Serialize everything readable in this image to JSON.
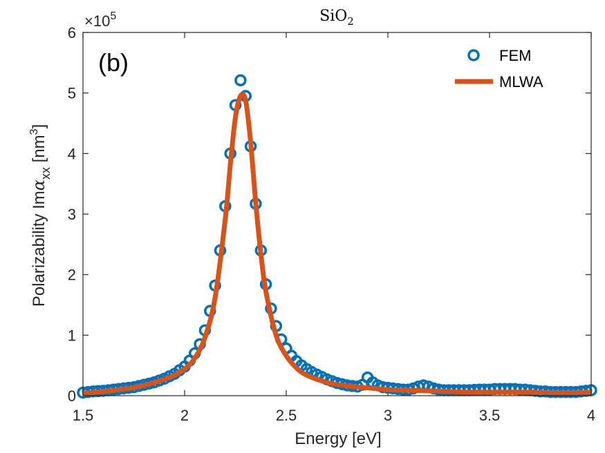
{
  "chart_data": {
    "type": "line",
    "title": "SiO",
    "title_subscript": "2",
    "panel_label": "(b)",
    "xlabel": "Energy [eV]",
    "ylabel_prefix": "Polarizability Im",
    "ylabel_greek": "α",
    "ylabel_sub": "xx",
    "ylabel_unit": " [nm",
    "ylabel_sup": "3",
    "ylabel_close": "]",
    "xlim": [
      1.5,
      4
    ],
    "ylim": [
      0,
      6
    ],
    "y_scale_base": "×10",
    "y_scale_exponent": "5",
    "xticks": [
      1.5,
      2,
      2.5,
      3,
      3.5,
      4
    ],
    "xtick_labels": [
      "1.5",
      "2",
      "2.5",
      "3",
      "3.5",
      "4"
    ],
    "yticks": [
      0,
      1,
      2,
      3,
      4,
      5,
      6
    ],
    "ytick_labels": [
      "0",
      "1",
      "2",
      "3",
      "4",
      "5",
      "6"
    ],
    "legend": {
      "position": "top-right",
      "entries": [
        "FEM",
        "MLWA"
      ]
    },
    "colors": {
      "fem": "#0072BD",
      "mlwa": "#D95319",
      "axis": "#262626"
    },
    "series": [
      {
        "name": "FEM",
        "style": "markers",
        "x": [
          1.5,
          1.525,
          1.55,
          1.575,
          1.6,
          1.625,
          1.65,
          1.675,
          1.7,
          1.725,
          1.75,
          1.775,
          1.8,
          1.825,
          1.85,
          1.875,
          1.9,
          1.925,
          1.95,
          1.975,
          2.0,
          2.025,
          2.05,
          2.075,
          2.1,
          2.125,
          2.15,
          2.175,
          2.2,
          2.225,
          2.25,
          2.275,
          2.3,
          2.325,
          2.35,
          2.375,
          2.4,
          2.425,
          2.45,
          2.475,
          2.5,
          2.525,
          2.55,
          2.575,
          2.6,
          2.625,
          2.65,
          2.675,
          2.7,
          2.725,
          2.75,
          2.775,
          2.8,
          2.825,
          2.85,
          2.875,
          2.9,
          2.925,
          2.95,
          2.975,
          3.0,
          3.025,
          3.05,
          3.075,
          3.1,
          3.125,
          3.15,
          3.175,
          3.2,
          3.225,
          3.25,
          3.275,
          3.3,
          3.325,
          3.35,
          3.375,
          3.4,
          3.425,
          3.45,
          3.475,
          3.5,
          3.525,
          3.55,
          3.575,
          3.6,
          3.625,
          3.65,
          3.675,
          3.7,
          3.725,
          3.75,
          3.775,
          3.8,
          3.825,
          3.85,
          3.875,
          3.9,
          3.925,
          3.95,
          3.975,
          4.0
        ],
        "values": [
          0.05,
          0.06,
          0.07,
          0.075,
          0.08,
          0.09,
          0.1,
          0.11,
          0.12,
          0.13,
          0.14,
          0.16,
          0.18,
          0.2,
          0.22,
          0.25,
          0.28,
          0.32,
          0.36,
          0.42,
          0.48,
          0.58,
          0.7,
          0.85,
          1.08,
          1.4,
          1.82,
          2.4,
          3.13,
          4.0,
          4.8,
          5.21,
          4.95,
          4.12,
          3.17,
          2.4,
          1.84,
          1.44,
          1.15,
          0.93,
          0.78,
          0.66,
          0.57,
          0.5,
          0.44,
          0.39,
          0.35,
          0.31,
          0.27,
          0.24,
          0.21,
          0.19,
          0.17,
          0.16,
          0.15,
          0.18,
          0.3,
          0.22,
          0.17,
          0.14,
          0.13,
          0.12,
          0.11,
          0.1,
          0.1,
          0.12,
          0.15,
          0.17,
          0.15,
          0.12,
          0.1,
          0.09,
          0.09,
          0.09,
          0.09,
          0.09,
          0.09,
          0.095,
          0.1,
          0.1,
          0.1,
          0.11,
          0.11,
          0.11,
          0.11,
          0.11,
          0.1,
          0.1,
          0.09,
          0.08,
          0.07,
          0.07,
          0.06,
          0.06,
          0.06,
          0.06,
          0.06,
          0.06,
          0.07,
          0.08,
          0.09
        ]
      },
      {
        "name": "MLWA",
        "style": "line",
        "x": [
          1.5,
          1.6,
          1.7,
          1.8,
          1.9,
          1.95,
          2.0,
          2.05,
          2.1,
          2.15,
          2.2,
          2.225,
          2.25,
          2.275,
          2.3,
          2.325,
          2.35,
          2.375,
          2.4,
          2.45,
          2.5,
          2.55,
          2.6,
          2.7,
          2.8,
          2.9,
          3.0,
          3.1,
          3.2,
          3.3,
          3.4,
          3.5,
          3.6,
          3.7,
          3.8,
          3.9,
          4.0
        ],
        "values": [
          0.04,
          0.07,
          0.11,
          0.17,
          0.27,
          0.34,
          0.44,
          0.62,
          0.96,
          1.62,
          2.92,
          3.82,
          4.6,
          4.95,
          4.88,
          4.18,
          3.18,
          2.35,
          1.72,
          1.0,
          0.66,
          0.46,
          0.34,
          0.22,
          0.16,
          0.13,
          0.1,
          0.09,
          0.08,
          0.07,
          0.06,
          0.06,
          0.06,
          0.06,
          0.05,
          0.05,
          0.06
        ]
      }
    ]
  }
}
